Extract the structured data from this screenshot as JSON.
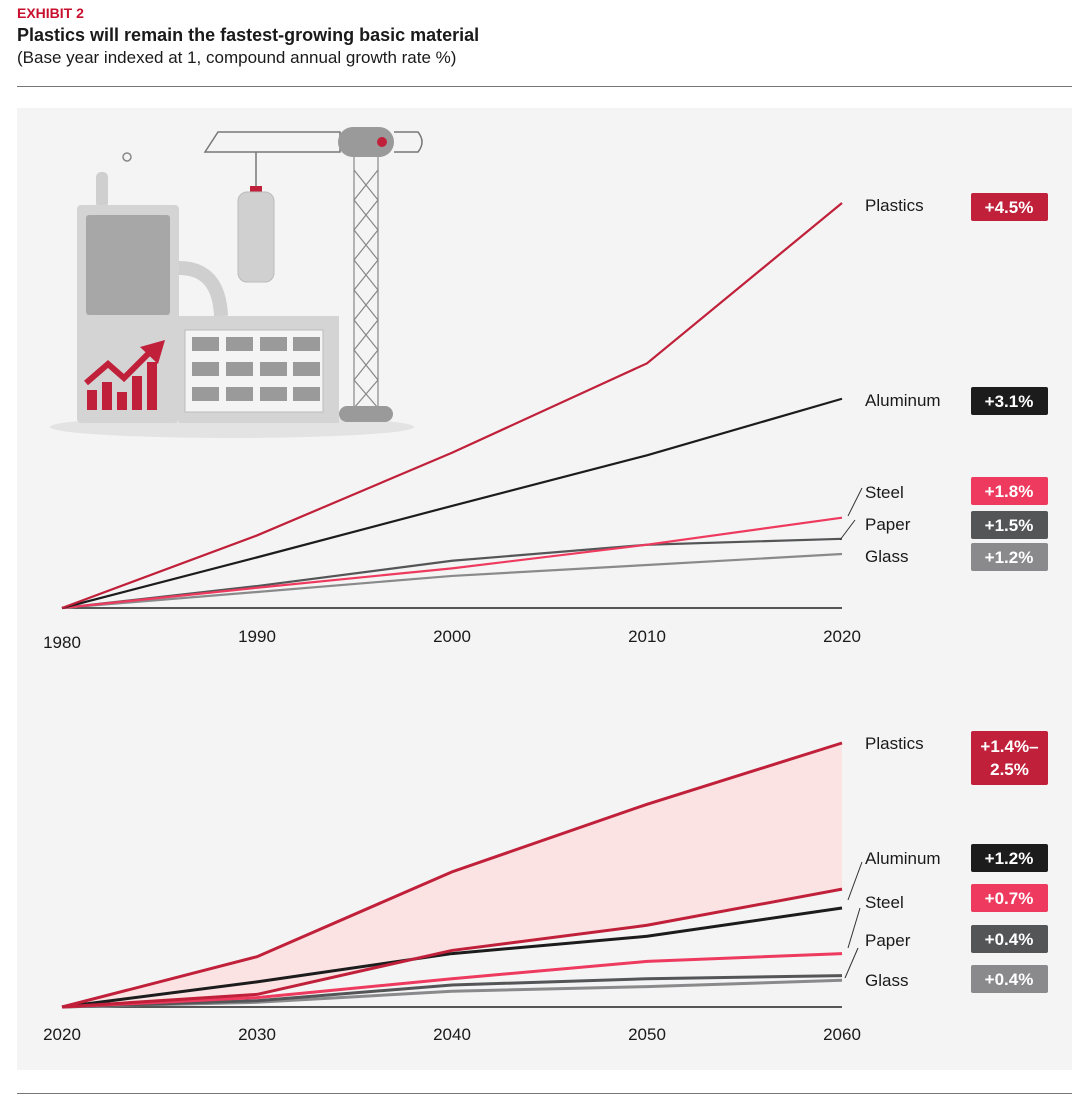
{
  "header": {
    "exhibit": "EXHIBIT 2",
    "title": "Plastics will remain the fastest-growing basic material",
    "subtitle": "(Base year indexed at 1, compound annual growth rate %)"
  },
  "colors": {
    "plastics": "#c0203a",
    "aluminum": "#1c1c1c",
    "steel": "#ee3a5e",
    "paper": "#545557",
    "glass": "#8a8a8c",
    "band": "#fbe3e3",
    "panel": "#f4f4f4"
  },
  "chart_data": [
    {
      "type": "line",
      "x": [
        1980,
        1990,
        2000,
        2010,
        2020
      ],
      "xlim": [
        1980,
        2020
      ],
      "ylim": [
        1,
        5.8
      ],
      "ylabel": "",
      "series": [
        {
          "name": "Plastics",
          "cagr": "+4.5%",
          "color": "#c0203a",
          "values": [
            1,
            1.86,
            2.84,
            3.9,
            5.8
          ]
        },
        {
          "name": "Aluminum",
          "cagr": "+3.1%",
          "color": "#1c1c1c",
          "values": [
            1,
            1.6,
            2.21,
            2.81,
            3.48
          ]
        },
        {
          "name": "Steel",
          "cagr": "+1.8%",
          "color": "#ee3a5e",
          "values": [
            1,
            1.24,
            1.47,
            1.75,
            2.07
          ]
        },
        {
          "name": "Paper",
          "cagr": "+1.5%",
          "color": "#545557",
          "values": [
            1,
            1.26,
            1.56,
            1.75,
            1.82
          ]
        },
        {
          "name": "Glass",
          "cagr": "+1.2%",
          "color": "#8a8a8c",
          "values": [
            1,
            1.19,
            1.38,
            1.51,
            1.64
          ]
        }
      ]
    },
    {
      "type": "area",
      "x": [
        2020,
        2030,
        2040,
        2050,
        2060
      ],
      "xlim": [
        2020,
        2060
      ],
      "ylim": [
        1,
        2.68
      ],
      "series": [
        {
          "name": "Plastics",
          "cagr": "+1.4%–2.5%",
          "color": "#c0203a",
          "band_high": [
            1,
            1.32,
            1.86,
            2.29,
            2.68
          ],
          "band_low": [
            1,
            1.08,
            1.36,
            1.52,
            1.75
          ]
        },
        {
          "name": "Aluminum",
          "cagr": "+1.2%",
          "color": "#1c1c1c",
          "values": [
            1,
            1.16,
            1.34,
            1.45,
            1.63
          ]
        },
        {
          "name": "Steel",
          "cagr": "+0.7%",
          "color": "#ee3a5e",
          "values": [
            1,
            1.06,
            1.18,
            1.29,
            1.34
          ]
        },
        {
          "name": "Paper",
          "cagr": "+0.4%",
          "color": "#545557",
          "values": [
            1,
            1.04,
            1.14,
            1.18,
            1.2
          ]
        },
        {
          "name": "Glass",
          "cagr": "+0.4%",
          "color": "#8a8a8c",
          "values": [
            1,
            1.03,
            1.1,
            1.13,
            1.17
          ]
        }
      ]
    }
  ]
}
